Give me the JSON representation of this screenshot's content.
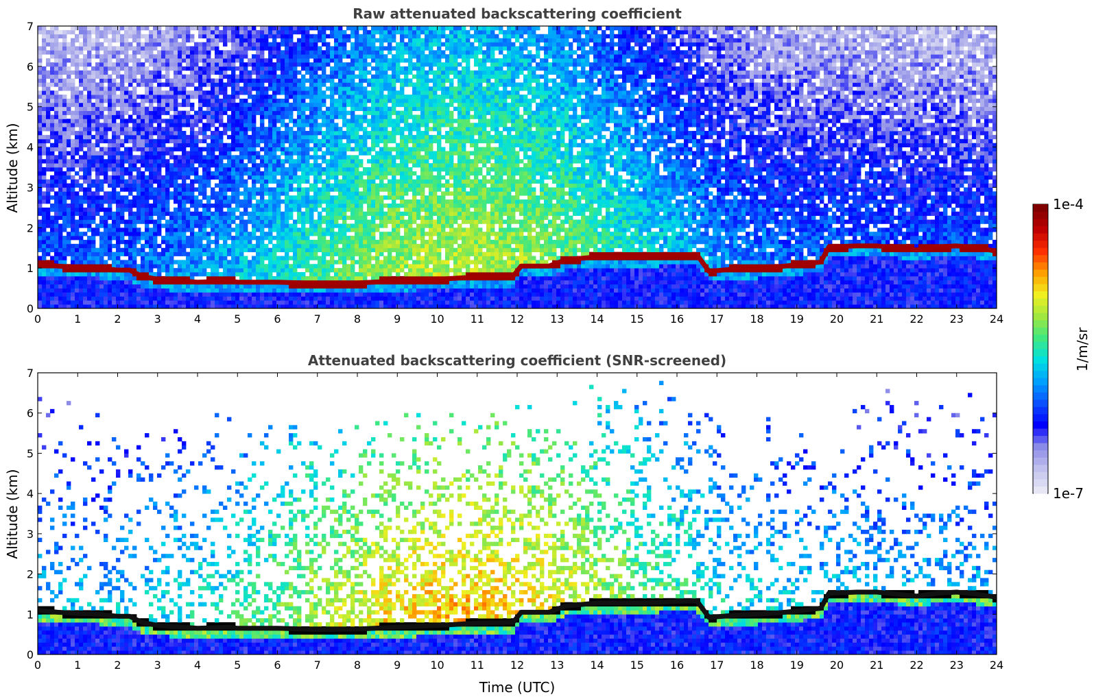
{
  "chart_data": [
    {
      "type": "heatmap",
      "title": "Raw attenuated backscattering coefficient",
      "xlabel": "",
      "ylabel": "Altitude (km)",
      "xlim": [
        0,
        24
      ],
      "ylim": [
        0,
        7
      ],
      "xticks": [
        "0",
        "1",
        "2",
        "3",
        "4",
        "5",
        "6",
        "7",
        "8",
        "9",
        "10",
        "11",
        "12",
        "13",
        "14",
        "15",
        "16",
        "17",
        "18",
        "19",
        "20",
        "21",
        "22",
        "23",
        "24"
      ],
      "yticks": [
        "0",
        "1",
        "2",
        "3",
        "4",
        "5",
        "6",
        "7"
      ],
      "grid": false,
      "cloud_base_km": {
        "time_utc": [
          0,
          0.5,
          1,
          1.5,
          2,
          2.3,
          2.6,
          3,
          4,
          4.8,
          5,
          6,
          7,
          8,
          9,
          10,
          11,
          11.9,
          12.1,
          12.8,
          13.2,
          14,
          15,
          15.6,
          16,
          16.5,
          16.8,
          17.5,
          18,
          18.5,
          19,
          19.6,
          19.8,
          20.5,
          21,
          21.5,
          22,
          22.5,
          23,
          23.5,
          24
        ],
        "altitude_km": [
          1.1,
          1.05,
          1.02,
          1.0,
          0.95,
          0.95,
          0.8,
          0.72,
          0.65,
          0.68,
          0.65,
          0.65,
          0.62,
          0.63,
          0.68,
          0.72,
          0.78,
          0.8,
          1.05,
          1.05,
          1.2,
          1.28,
          1.28,
          1.3,
          1.32,
          1.33,
          0.92,
          0.98,
          1.0,
          1.03,
          1.08,
          1.15,
          1.52,
          1.55,
          1.55,
          1.5,
          1.45,
          1.52,
          1.55,
          1.5,
          1.42
        ]
      }
    },
    {
      "type": "heatmap",
      "title": "Attenuated backscattering coefficient (SNR-screened)",
      "xlabel": "Time (UTC)",
      "ylabel": "Altitude (km)",
      "xlim": [
        0,
        24
      ],
      "ylim": [
        0,
        7
      ],
      "xticks": [
        "0",
        "1",
        "2",
        "3",
        "4",
        "5",
        "6",
        "7",
        "8",
        "9",
        "10",
        "11",
        "12",
        "13",
        "14",
        "15",
        "16",
        "17",
        "18",
        "19",
        "20",
        "21",
        "22",
        "23",
        "24"
      ],
      "yticks": [
        "0",
        "1",
        "2",
        "3",
        "4",
        "5",
        "6",
        "7"
      ],
      "grid": false,
      "cloud_base_km": {
        "time_utc": [
          0,
          0.5,
          1,
          1.5,
          2,
          2.3,
          2.6,
          3,
          4,
          4.8,
          5,
          6,
          7,
          8,
          9,
          10,
          11,
          11.9,
          12.1,
          12.8,
          13.2,
          14,
          15,
          15.6,
          16,
          16.5,
          16.8,
          17.5,
          18,
          18.5,
          19,
          19.6,
          19.8,
          20.5,
          21,
          21.5,
          22,
          22.5,
          23,
          23.5,
          24
        ],
        "altitude_km": [
          1.1,
          1.05,
          1.02,
          1.0,
          0.95,
          0.95,
          0.8,
          0.72,
          0.65,
          0.68,
          0.65,
          0.65,
          0.62,
          0.63,
          0.68,
          0.72,
          0.78,
          0.8,
          1.05,
          1.05,
          1.2,
          1.28,
          1.28,
          1.3,
          1.32,
          1.33,
          0.92,
          0.98,
          1.0,
          1.03,
          1.08,
          1.15,
          1.52,
          1.55,
          1.55,
          1.5,
          1.45,
          1.52,
          1.55,
          1.5,
          1.42
        ]
      }
    }
  ],
  "colorbar": {
    "label": "1/m/sr",
    "max_label": "1e-4",
    "min_label": "1e-7",
    "scale": "log",
    "range": [
      1e-07,
      0.0001
    ],
    "colormap": [
      "#e6e6f5",
      "#c0c0ee",
      "#8a8ae8",
      "#0000ff",
      "#0a50ff",
      "#00a0ff",
      "#00e0e0",
      "#40e880",
      "#a0e840",
      "#f0f020",
      "#ffa000",
      "#ff3000",
      "#c00000",
      "#800000"
    ]
  }
}
